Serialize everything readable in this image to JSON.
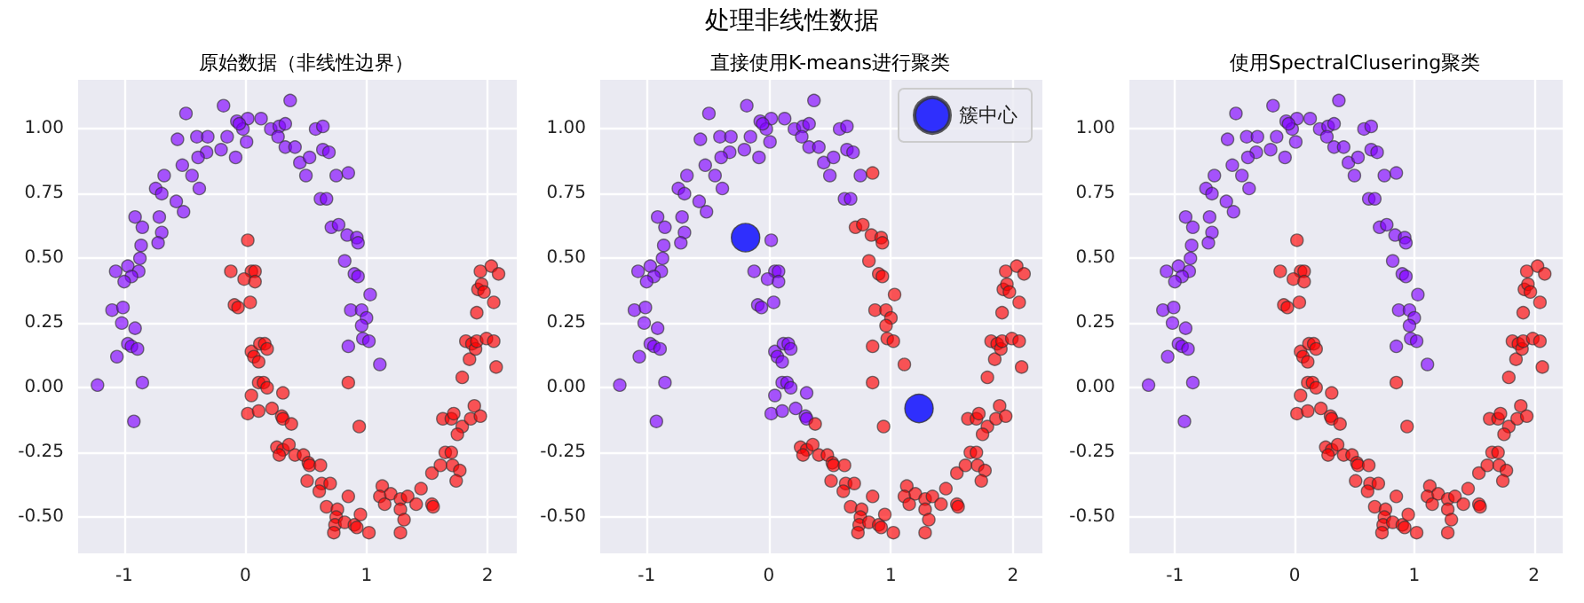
{
  "chart_data": [
    {
      "type": "scatter",
      "title": "原始数据（非线性边界）",
      "annotations": [
        "处理非线性数据"
      ],
      "xlim": [
        -1.38,
        2.24
      ],
      "ylim": [
        -0.64,
        1.19
      ],
      "xticks": [
        -1,
        0,
        1,
        2
      ],
      "yticks": [
        {
          "value": -0.5,
          "label": "-0.50"
        },
        {
          "value": -0.25,
          "label": "-0.25"
        },
        {
          "value": 0,
          "label": "0.00"
        },
        {
          "value": 0.25,
          "label": "0.25"
        },
        {
          "value": 0.5,
          "label": "0.50"
        },
        {
          "value": 0.75,
          "label": "0.75"
        },
        {
          "value": 1,
          "label": "1.00"
        }
      ],
      "grid": true,
      "marker": "circle",
      "series": [
        {
          "color": "#8000ff",
          "x": [
            -0.49,
            -0.18,
            0.37,
            -0.07,
            0.02,
            0.13,
            -0.02,
            0.01,
            -0.05,
            -0.15,
            -0.2,
            -0.08,
            -0.32,
            -0.39,
            -0.56,
            -0.4,
            -0.31,
            0.21,
            0.28,
            0.33,
            0.27,
            0.33,
            0.41,
            0.45,
            0.53,
            0.58,
            0.64,
            0.64,
            0.69,
            0.5,
            0.75,
            0.85,
            0.62,
            0.67,
            0.71,
            0.77,
            0.84,
            0.92,
            0.93,
            0.82,
            0.9,
            0.93,
            1.03,
            0.87,
            0.96,
            1.0,
            0.96,
            0.97,
            1.02,
            0.85,
            1.11,
            -0.52,
            -0.44,
            -0.38,
            -0.67,
            -0.74,
            -0.69,
            -0.57,
            -0.51,
            -0.91,
            -0.85,
            -0.86,
            -0.87,
            -0.71,
            -0.69,
            -0.72,
            -1.07,
            -0.97,
            -0.88,
            -0.94,
            -1.0,
            -1.1,
            -1.01,
            -1.02,
            -0.91,
            -0.97,
            -0.94,
            -0.89,
            -1.06,
            -1.22,
            -0.85,
            -0.92
          ],
          "values": [
            1.06,
            1.09,
            1.11,
            1.03,
            1.04,
            1.04,
            1.0,
            0.95,
            1.02,
            0.97,
            0.92,
            0.89,
            0.91,
            0.89,
            0.96,
            0.97,
            0.97,
            1.0,
            1.01,
            1.02,
            0.97,
            0.93,
            0.93,
            0.87,
            0.89,
            1.0,
            1.01,
            0.92,
            0.91,
            0.82,
            0.82,
            0.83,
            0.73,
            0.73,
            0.62,
            0.63,
            0.59,
            0.58,
            0.56,
            0.49,
            0.44,
            0.43,
            0.36,
            0.3,
            0.3,
            0.27,
            0.24,
            0.19,
            0.18,
            0.16,
            0.09,
            0.86,
            0.82,
            0.77,
            0.82,
            0.77,
            0.75,
            0.72,
            0.68,
            0.66,
            0.62,
            0.55,
            0.5,
            0.66,
            0.6,
            0.56,
            0.45,
            0.47,
            0.45,
            0.43,
            0.41,
            0.3,
            0.31,
            0.25,
            0.23,
            0.17,
            0.16,
            0.15,
            0.12,
            0.01,
            0.02,
            -0.13
          ]
        },
        {
          "color": "#ff0000",
          "x": [
            0.02,
            -0.12,
            0.05,
            0.08,
            -0.01,
            0.08,
            -0.09,
            -0.06,
            0.04,
            0.05,
            0.12,
            0.16,
            0.18,
            0.07,
            0.11,
            0.11,
            0.15,
            0.18,
            0.05,
            0.31,
            0.02,
            0.11,
            0.22,
            0.3,
            0.31,
            0.38,
            0.26,
            0.31,
            0.28,
            0.36,
            0.41,
            0.48,
            0.52,
            0.53,
            0.62,
            0.51,
            0.63,
            0.7,
            0.61,
            0.67,
            0.76,
            0.75,
            0.74,
            0.73,
            0.82,
            0.9,
            0.92,
            0.95,
            1.02,
            0.85,
            0.94,
            0.85,
            1.13,
            1.11,
            1.15,
            1.2,
            1.28,
            1.34,
            1.28,
            1.31,
            1.28,
            1.41,
            1.45,
            1.54,
            1.55,
            1.54,
            1.61,
            1.65,
            1.7,
            1.71,
            1.77,
            1.74,
            1.63,
            1.7,
            1.72,
            1.79,
            1.75,
            1.86,
            1.89,
            1.94,
            1.79,
            1.85,
            1.82,
            1.87,
            1.9,
            1.91,
            1.99,
            2.05,
            2.07,
            1.91,
            2.05,
            1.92,
            1.95,
            1.97,
            1.94,
            2.03,
            2.09
          ],
          "values": [
            0.57,
            0.45,
            0.45,
            0.45,
            0.42,
            0.41,
            0.32,
            0.31,
            0.33,
            0.14,
            0.17,
            0.17,
            0.15,
            0.12,
            0.1,
            0.02,
            0.02,
            0.0,
            -0.03,
            -0.02,
            -0.1,
            -0.09,
            -0.08,
            -0.11,
            -0.12,
            -0.14,
            -0.23,
            -0.24,
            -0.26,
            -0.22,
            -0.26,
            -0.26,
            -0.29,
            -0.3,
            -0.3,
            -0.36,
            -0.37,
            -0.37,
            -0.4,
            -0.46,
            -0.47,
            -0.5,
            -0.53,
            -0.56,
            -0.52,
            -0.53,
            -0.54,
            -0.49,
            -0.56,
            -0.42,
            -0.15,
            0.02,
            -0.38,
            -0.42,
            -0.45,
            -0.41,
            -0.43,
            -0.42,
            -0.47,
            -0.51,
            -0.56,
            -0.45,
            -0.39,
            -0.45,
            -0.46,
            -0.33,
            -0.3,
            -0.25,
            -0.25,
            -0.3,
            -0.32,
            -0.36,
            -0.12,
            -0.12,
            -0.1,
            -0.15,
            -0.18,
            -0.12,
            -0.07,
            -0.11,
            0.04,
            0.11,
            0.18,
            0.17,
            0.15,
            0.18,
            0.19,
            0.18,
            0.08,
            0.29,
            0.33,
            0.38,
            0.4,
            0.37,
            0.45,
            0.47,
            0.44
          ]
        }
      ]
    },
    {
      "type": "scatter",
      "title": "直接使用K-means进行聚类",
      "xlim": [
        -1.38,
        2.24
      ],
      "ylim": [
        -0.64,
        1.19
      ],
      "xticks": [
        -1,
        0,
        1,
        2
      ],
      "yticks": [
        {
          "value": -0.5,
          "label": "-0.50"
        },
        {
          "value": -0.25,
          "label": "-0.25"
        },
        {
          "value": 0,
          "label": "0.00"
        },
        {
          "value": 0.25,
          "label": "0.25"
        },
        {
          "value": 0.5,
          "label": "0.50"
        },
        {
          "value": 0.75,
          "label": "0.75"
        },
        {
          "value": 1,
          "label": "1.00"
        }
      ],
      "grid": true,
      "marker": "circle",
      "legend": "top right",
      "series": [
        {
          "color": "#8000ff",
          "x": [
            -0.49,
            -0.18,
            0.37,
            -0.07,
            0.02,
            0.13,
            -0.02,
            0.01,
            -0.05,
            -0.15,
            -0.2,
            -0.08,
            -0.32,
            -0.39,
            -0.56,
            -0.4,
            -0.31,
            0.21,
            0.28,
            0.33,
            0.27,
            0.33,
            0.41,
            0.45,
            0.53,
            0.58,
            0.64,
            0.64,
            0.69,
            0.5,
            0.75,
            0.62,
            0.67,
            -0.52,
            -0.44,
            -0.38,
            -0.67,
            -0.74,
            -0.69,
            -0.57,
            -0.51,
            -0.91,
            -0.85,
            -0.86,
            -0.87,
            -0.71,
            -0.69,
            -0.72,
            -1.07,
            -0.97,
            -0.88,
            -0.94,
            -1.0,
            -1.1,
            -1.01,
            -1.02,
            -0.91,
            -0.97,
            -0.94,
            -0.89,
            -1.06,
            -1.22,
            -0.85,
            -0.92,
            0.02,
            -0.12,
            0.05,
            0.08,
            -0.01,
            0.08,
            -0.09,
            -0.06,
            0.04,
            0.05,
            0.12,
            0.16,
            0.18,
            0.07,
            0.11,
            0.11,
            0.15,
            0.18,
            0.05,
            0.31,
            0.02,
            0.11,
            0.22,
            0.3,
            0.31
          ],
          "values": [
            1.06,
            1.09,
            1.11,
            1.03,
            1.04,
            1.04,
            1.0,
            0.95,
            1.02,
            0.97,
            0.92,
            0.89,
            0.91,
            0.89,
            0.96,
            0.97,
            0.97,
            1.0,
            1.01,
            1.02,
            0.97,
            0.93,
            0.93,
            0.87,
            0.89,
            1.0,
            1.01,
            0.92,
            0.91,
            0.82,
            0.82,
            0.73,
            0.73,
            0.86,
            0.82,
            0.77,
            0.82,
            0.77,
            0.75,
            0.72,
            0.68,
            0.66,
            0.62,
            0.55,
            0.5,
            0.66,
            0.6,
            0.56,
            0.45,
            0.47,
            0.45,
            0.43,
            0.41,
            0.3,
            0.31,
            0.25,
            0.23,
            0.17,
            0.16,
            0.15,
            0.12,
            0.01,
            0.02,
            -0.13,
            0.57,
            0.45,
            0.45,
            0.45,
            0.42,
            0.41,
            0.32,
            0.31,
            0.33,
            0.14,
            0.17,
            0.17,
            0.15,
            0.12,
            0.1,
            0.02,
            0.02,
            0.0,
            -0.03,
            -0.02,
            -0.1,
            -0.09,
            -0.08,
            -0.11,
            -0.12
          ]
        },
        {
          "color": "#ff0000",
          "x": [
            0.85,
            0.71,
            0.77,
            0.84,
            0.92,
            0.93,
            0.82,
            0.9,
            0.93,
            1.03,
            0.87,
            0.96,
            1.0,
            0.96,
            0.97,
            1.02,
            0.85,
            1.11,
            0.38,
            0.26,
            0.31,
            0.28,
            0.36,
            0.41,
            0.48,
            0.52,
            0.53,
            0.62,
            0.51,
            0.63,
            0.7,
            0.61,
            0.67,
            0.76,
            0.75,
            0.74,
            0.73,
            0.82,
            0.9,
            0.92,
            0.95,
            1.02,
            0.85,
            0.94,
            0.85,
            1.13,
            1.11,
            1.15,
            1.2,
            1.28,
            1.34,
            1.28,
            1.31,
            1.28,
            1.41,
            1.45,
            1.54,
            1.55,
            1.54,
            1.61,
            1.65,
            1.7,
            1.71,
            1.77,
            1.74,
            1.63,
            1.7,
            1.72,
            1.79,
            1.75,
            1.86,
            1.89,
            1.94,
            1.79,
            1.85,
            1.82,
            1.87,
            1.9,
            1.91,
            1.99,
            2.05,
            2.07,
            1.91,
            2.05,
            1.92,
            1.95,
            1.97,
            1.94,
            2.03,
            2.09
          ],
          "values": [
            0.83,
            0.62,
            0.63,
            0.59,
            0.58,
            0.56,
            0.49,
            0.44,
            0.43,
            0.36,
            0.3,
            0.3,
            0.27,
            0.24,
            0.19,
            0.18,
            0.16,
            0.09,
            -0.14,
            -0.23,
            -0.24,
            -0.26,
            -0.22,
            -0.26,
            -0.26,
            -0.29,
            -0.3,
            -0.3,
            -0.36,
            -0.37,
            -0.37,
            -0.4,
            -0.46,
            -0.47,
            -0.5,
            -0.53,
            -0.56,
            -0.52,
            -0.53,
            -0.54,
            -0.49,
            -0.56,
            -0.42,
            -0.15,
            0.02,
            -0.38,
            -0.42,
            -0.45,
            -0.41,
            -0.43,
            -0.42,
            -0.47,
            -0.51,
            -0.56,
            -0.45,
            -0.39,
            -0.45,
            -0.46,
            -0.33,
            -0.3,
            -0.25,
            -0.25,
            -0.3,
            -0.32,
            -0.36,
            -0.12,
            -0.12,
            -0.1,
            -0.15,
            -0.18,
            -0.12,
            -0.07,
            -0.11,
            0.04,
            0.11,
            0.18,
            0.17,
            0.15,
            0.18,
            0.19,
            0.18,
            0.08,
            0.29,
            0.33,
            0.38,
            0.4,
            0.37,
            0.45,
            0.47,
            0.44
          ]
        },
        {
          "name": "簇中心",
          "color": "#0000ff",
          "x": [
            -0.19,
            1.23
          ],
          "values": [
            0.58,
            -0.08
          ]
        }
      ]
    },
    {
      "type": "scatter",
      "title": "使用SpectralClusering聚类",
      "xlim": [
        -1.38,
        2.24
      ],
      "ylim": [
        -0.64,
        1.19
      ],
      "xticks": [
        -1,
        0,
        1,
        2
      ],
      "yticks": [
        {
          "value": -0.5,
          "label": "-0.50"
        },
        {
          "value": -0.25,
          "label": "-0.25"
        },
        {
          "value": 0,
          "label": "0.00"
        },
        {
          "value": 0.25,
          "label": "0.25"
        },
        {
          "value": 0.5,
          "label": "0.50"
        },
        {
          "value": 0.75,
          "label": "0.75"
        },
        {
          "value": 1,
          "label": "1.00"
        }
      ],
      "grid": true,
      "marker": "circle",
      "series": [
        {
          "color": "#8000ff",
          "x": [
            -0.49,
            -0.18,
            0.37,
            -0.07,
            0.02,
            0.13,
            -0.02,
            0.01,
            -0.05,
            -0.15,
            -0.2,
            -0.08,
            -0.32,
            -0.39,
            -0.56,
            -0.4,
            -0.31,
            0.21,
            0.28,
            0.33,
            0.27,
            0.33,
            0.41,
            0.45,
            0.53,
            0.58,
            0.64,
            0.64,
            0.69,
            0.5,
            0.75,
            0.85,
            0.62,
            0.67,
            0.71,
            0.77,
            0.84,
            0.92,
            0.93,
            0.82,
            0.9,
            0.93,
            1.03,
            0.87,
            0.96,
            1.0,
            0.96,
            0.97,
            1.02,
            0.85,
            1.11,
            -0.52,
            -0.44,
            -0.38,
            -0.67,
            -0.74,
            -0.69,
            -0.57,
            -0.51,
            -0.91,
            -0.85,
            -0.86,
            -0.87,
            -0.71,
            -0.69,
            -0.72,
            -1.07,
            -0.97,
            -0.88,
            -0.94,
            -1.0,
            -1.1,
            -1.01,
            -1.02,
            -0.91,
            -0.97,
            -0.94,
            -0.89,
            -1.06,
            -1.22,
            -0.85,
            -0.92
          ],
          "values": [
            1.06,
            1.09,
            1.11,
            1.03,
            1.04,
            1.04,
            1.0,
            0.95,
            1.02,
            0.97,
            0.92,
            0.89,
            0.91,
            0.89,
            0.96,
            0.97,
            0.97,
            1.0,
            1.01,
            1.02,
            0.97,
            0.93,
            0.93,
            0.87,
            0.89,
            1.0,
            1.01,
            0.92,
            0.91,
            0.82,
            0.82,
            0.83,
            0.73,
            0.73,
            0.62,
            0.63,
            0.59,
            0.58,
            0.56,
            0.49,
            0.44,
            0.43,
            0.36,
            0.3,
            0.3,
            0.27,
            0.24,
            0.19,
            0.18,
            0.16,
            0.09,
            0.86,
            0.82,
            0.77,
            0.82,
            0.77,
            0.75,
            0.72,
            0.68,
            0.66,
            0.62,
            0.55,
            0.5,
            0.66,
            0.6,
            0.56,
            0.45,
            0.47,
            0.45,
            0.43,
            0.41,
            0.3,
            0.31,
            0.25,
            0.23,
            0.17,
            0.16,
            0.15,
            0.12,
            0.01,
            0.02,
            -0.13
          ]
        },
        {
          "color": "#ff0000",
          "x": [
            0.02,
            -0.12,
            0.05,
            0.08,
            -0.01,
            0.08,
            -0.09,
            -0.06,
            0.04,
            0.05,
            0.12,
            0.16,
            0.18,
            0.07,
            0.11,
            0.11,
            0.15,
            0.18,
            0.05,
            0.31,
            0.02,
            0.11,
            0.22,
            0.3,
            0.31,
            0.38,
            0.26,
            0.31,
            0.28,
            0.36,
            0.41,
            0.48,
            0.52,
            0.53,
            0.62,
            0.51,
            0.63,
            0.7,
            0.61,
            0.67,
            0.76,
            0.75,
            0.74,
            0.73,
            0.82,
            0.9,
            0.92,
            0.95,
            1.02,
            0.85,
            0.94,
            0.85,
            1.13,
            1.11,
            1.15,
            1.2,
            1.28,
            1.34,
            1.28,
            1.31,
            1.28,
            1.41,
            1.45,
            1.54,
            1.55,
            1.54,
            1.61,
            1.65,
            1.7,
            1.71,
            1.77,
            1.74,
            1.63,
            1.7,
            1.72,
            1.79,
            1.75,
            1.86,
            1.89,
            1.94,
            1.79,
            1.85,
            1.82,
            1.87,
            1.9,
            1.91,
            1.99,
            2.05,
            2.07,
            1.91,
            2.05,
            1.92,
            1.95,
            1.97,
            1.94,
            2.03,
            2.09
          ],
          "values": [
            0.57,
            0.45,
            0.45,
            0.45,
            0.42,
            0.41,
            0.32,
            0.31,
            0.33,
            0.14,
            0.17,
            0.17,
            0.15,
            0.12,
            0.1,
            0.02,
            0.02,
            0.0,
            -0.03,
            -0.02,
            -0.1,
            -0.09,
            -0.08,
            -0.11,
            -0.12,
            -0.14,
            -0.23,
            -0.24,
            -0.26,
            -0.22,
            -0.26,
            -0.26,
            -0.29,
            -0.3,
            -0.3,
            -0.36,
            -0.37,
            -0.37,
            -0.4,
            -0.46,
            -0.47,
            -0.5,
            -0.53,
            -0.56,
            -0.52,
            -0.53,
            -0.54,
            -0.49,
            -0.56,
            -0.42,
            -0.15,
            0.02,
            -0.38,
            -0.42,
            -0.45,
            -0.41,
            -0.43,
            -0.42,
            -0.47,
            -0.51,
            -0.56,
            -0.45,
            -0.39,
            -0.45,
            -0.46,
            -0.33,
            -0.3,
            -0.25,
            -0.25,
            -0.3,
            -0.32,
            -0.36,
            -0.12,
            -0.12,
            -0.1,
            -0.15,
            -0.18,
            -0.12,
            -0.07,
            -0.11,
            0.04,
            0.11,
            0.18,
            0.17,
            0.15,
            0.18,
            0.19,
            0.18,
            0.08,
            0.29,
            0.33,
            0.38,
            0.4,
            0.37,
            0.45,
            0.47,
            0.44
          ]
        }
      ]
    }
  ]
}
